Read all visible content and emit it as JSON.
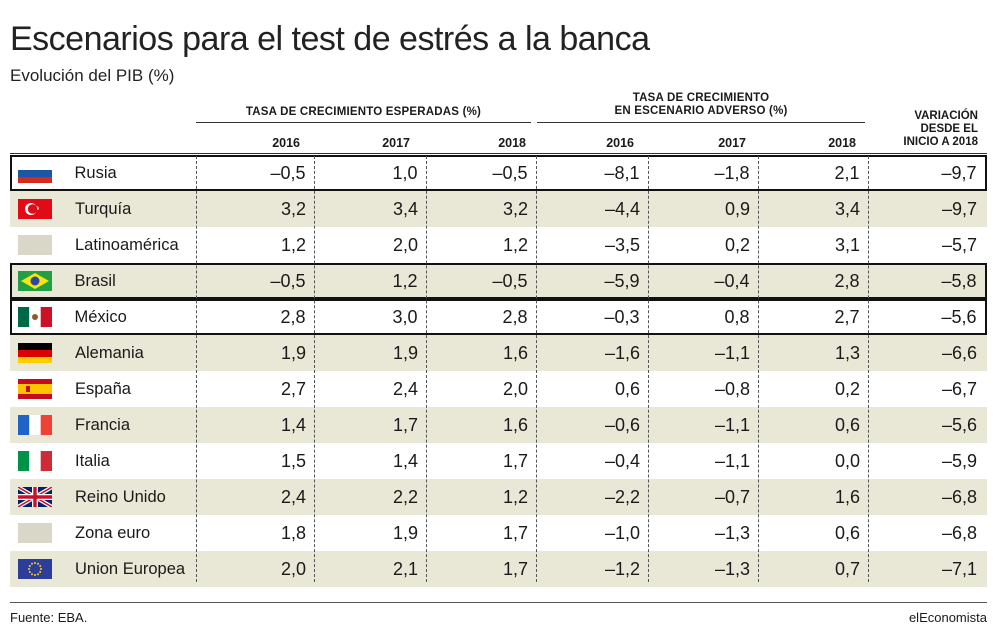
{
  "title": "Escenarios para el test de estrés a la banca",
  "subtitle": "Evolución del PIB (%)",
  "headers": {
    "group_expected": "TASA DE CRECIMIENTO ESPERADAS (%)",
    "group_adverse_1": "TASA DE CRECIMIENTO",
    "group_adverse_2": "EN ESCENARIO ADVERSO (%)",
    "variation_1": "VARIACIÓN",
    "variation_2": "DESDE EL",
    "variation_3": "INICIO A 2018",
    "years": [
      "2016",
      "2017",
      "2018",
      "2016",
      "2017",
      "2018"
    ]
  },
  "footer": {
    "source": "Fuente: EBA.",
    "brand": "elEconomista"
  },
  "chart_data": {
    "type": "table",
    "title": "Escenarios para el test de estrés a la banca",
    "subtitle": "Evolución del PIB (%)",
    "rows": [
      {
        "name": "Rusia",
        "flag": "russia-flag",
        "expected": [
          "–0,5",
          "1,0",
          "–0,5"
        ],
        "adverse": [
          "–8,1",
          "–1,8",
          "2,1"
        ],
        "variation": "–9,7",
        "boxed": true,
        "shaded": false
      },
      {
        "name": "Turquía",
        "flag": "turkey-flag",
        "expected": [
          "3,2",
          "3,4",
          "3,2"
        ],
        "adverse": [
          "–4,4",
          "0,9",
          "3,4"
        ],
        "variation": "–9,7",
        "boxed": false,
        "shaded": true
      },
      {
        "name": "Latinoamérica",
        "flag": "blank-flag",
        "expected": [
          "1,2",
          "2,0",
          "1,2"
        ],
        "adverse": [
          "–3,5",
          "0,2",
          "3,1"
        ],
        "variation": "–5,7",
        "boxed": false,
        "shaded": false
      },
      {
        "name": "Brasil",
        "flag": "brazil-flag",
        "expected": [
          "–0,5",
          "1,2",
          "–0,5"
        ],
        "adverse": [
          "–5,9",
          "–0,4",
          "2,8"
        ],
        "variation": "–5,8",
        "boxed": true,
        "shaded": true
      },
      {
        "name": "México",
        "flag": "mexico-flag",
        "expected": [
          "2,8",
          "3,0",
          "2,8"
        ],
        "adverse": [
          "–0,3",
          "0,8",
          "2,7"
        ],
        "variation": "–5,6",
        "boxed": true,
        "shaded": false
      },
      {
        "name": "Alemania",
        "flag": "germany-flag",
        "expected": [
          "1,9",
          "1,9",
          "1,6"
        ],
        "adverse": [
          "–1,6",
          "–1,1",
          "1,3"
        ],
        "variation": "–6,6",
        "boxed": false,
        "shaded": true
      },
      {
        "name": "España",
        "flag": "spain-flag",
        "expected": [
          "2,7",
          "2,4",
          "2,0"
        ],
        "adverse": [
          "0,6",
          "–0,8",
          "0,2"
        ],
        "variation": "–6,7",
        "boxed": false,
        "shaded": false
      },
      {
        "name": "Francia",
        "flag": "france-flag",
        "expected": [
          "1,4",
          "1,7",
          "1,6"
        ],
        "adverse": [
          "–0,6",
          "–1,1",
          "0,6"
        ],
        "variation": "–5,6",
        "boxed": false,
        "shaded": true
      },
      {
        "name": "Italia",
        "flag": "italy-flag",
        "expected": [
          "1,5",
          "1,4",
          "1,7"
        ],
        "adverse": [
          "–0,4",
          "–1,1",
          "0,0"
        ],
        "variation": "–5,9",
        "boxed": false,
        "shaded": false
      },
      {
        "name": "Reino Unido",
        "flag": "uk-flag",
        "expected": [
          "2,4",
          "2,2",
          "1,2"
        ],
        "adverse": [
          "–2,2",
          "–0,7",
          "1,6"
        ],
        "variation": "–6,8",
        "boxed": false,
        "shaded": true
      },
      {
        "name": "Zona euro",
        "flag": "blank-flag",
        "expected": [
          "1,8",
          "1,9",
          "1,7"
        ],
        "adverse": [
          "–1,0",
          "–1,3",
          "0,6"
        ],
        "variation": "–6,8",
        "boxed": false,
        "shaded": false
      },
      {
        "name": "Union Europea",
        "flag": "eu-flag",
        "expected": [
          "2,0",
          "2,1",
          "1,7"
        ],
        "adverse": [
          "–1,2",
          "–1,3",
          "0,7"
        ],
        "variation": "–7,1",
        "boxed": false,
        "shaded": true
      }
    ]
  }
}
